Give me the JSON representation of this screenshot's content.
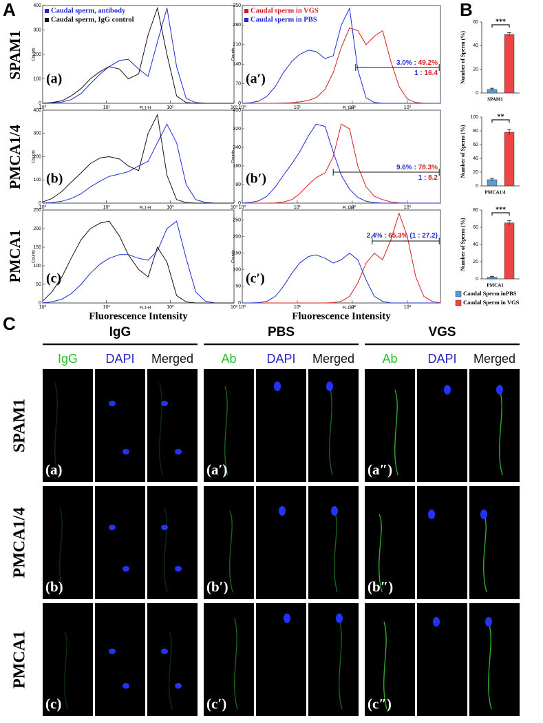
{
  "figure": {
    "A": "A",
    "B": "B",
    "flow_rows": [
      "SPAM1",
      "PMCA1/4",
      "PMCA1"
    ]
  },
  "chart_data": [
    {
      "type": "line",
      "panel_label": "(a)",
      "ylabel": "Counts",
      "xlabel": "FL1-H",
      "log_x": true,
      "legend": "top-left",
      "x": [
        1,
        1.4,
        2,
        2.8,
        4,
        5.6,
        8,
        11,
        16,
        22,
        32,
        45,
        63,
        89,
        126,
        178,
        251,
        355,
        501,
        708,
        1000
      ],
      "xlim": [
        1,
        1000
      ],
      "xticks": [
        {
          "value": 1,
          "label": "10⁰"
        },
        {
          "value": 10,
          "label": "10¹"
        },
        {
          "value": 100,
          "label": "10²"
        },
        {
          "value": 1000,
          "label": "10³"
        }
      ],
      "ylim": [
        0,
        400
      ],
      "yticks": [
        0,
        100,
        200,
        300,
        400
      ],
      "series": [
        {
          "name": "Caudal sperm, antibody",
          "color": "#1a2bd6",
          "values": [
            0,
            2,
            5,
            15,
            40,
            80,
            120,
            150,
            175,
            180,
            140,
            110,
            250,
            390,
            150,
            20,
            3,
            0,
            0,
            0,
            0
          ]
        },
        {
          "name": "Caudal sperm, IgG control",
          "color": "#111111",
          "values": [
            0,
            3,
            10,
            30,
            60,
            100,
            130,
            150,
            140,
            100,
            120,
            280,
            390,
            200,
            30,
            3,
            0,
            0,
            0,
            0,
            0
          ]
        }
      ]
    },
    {
      "type": "line",
      "panel_label": "(a′)",
      "ylabel": "Counts",
      "xlabel": "FL1-H",
      "log_x": true,
      "legend": "top-left",
      "x": [
        1,
        1.4,
        2,
        2.8,
        4,
        5.6,
        8,
        11,
        16,
        22,
        32,
        45,
        63,
        89,
        126,
        178,
        251,
        355,
        501,
        708,
        1000,
        1413,
        1995,
        2818,
        3981
      ],
      "xlim": [
        1,
        4000
      ],
      "xticks": [
        {
          "value": 1,
          "label": "10⁰"
        },
        {
          "value": 10,
          "label": "10¹"
        },
        {
          "value": 100,
          "label": "10²"
        },
        {
          "value": 1000,
          "label": "10³"
        }
      ],
      "ylim": [
        0,
        350
      ],
      "yticks": [
        0,
        70,
        140,
        210,
        280,
        350
      ],
      "series": [
        {
          "name": "Caudal sperm in VGS",
          "color": "#d41c1c",
          "values": [
            0,
            0,
            0,
            0,
            0,
            1,
            2,
            5,
            10,
            20,
            50,
            110,
            200,
            270,
            260,
            210,
            240,
            260,
            150,
            60,
            15,
            3,
            0,
            0,
            0
          ]
        },
        {
          "name": "Caudal sperm in PBS",
          "color": "#1a2bd6",
          "values": [
            0,
            2,
            8,
            25,
            60,
            110,
            150,
            175,
            190,
            185,
            160,
            170,
            280,
            340,
            120,
            20,
            3,
            0,
            0,
            0,
            0,
            0,
            0,
            0,
            0
          ]
        }
      ],
      "gate": [
        115,
        3800
      ],
      "annotations": [
        [
          {
            "text": "3.0%",
            "color": "#1a2bd6"
          },
          {
            "text": " : ",
            "color": "#1a2bd6"
          },
          {
            "text": "49.2%",
            "color": "#d41c1c"
          }
        ],
        [
          {
            "text": "1",
            "color": "#1a2bd6"
          },
          {
            "text": " : ",
            "color": "#1a2bd6"
          },
          {
            "text": "16.4",
            "color": "#d41c1c"
          }
        ]
      ]
    },
    {
      "type": "line",
      "panel_label": "(b)",
      "ylabel": "Counts",
      "xlabel": "FL1-H",
      "log_x": true,
      "x": [
        1,
        1.4,
        2,
        2.8,
        4,
        5.6,
        8,
        11,
        16,
        22,
        32,
        45,
        63,
        89,
        126,
        178,
        251,
        355,
        501,
        708,
        1000
      ],
      "xlim": [
        1,
        1000
      ],
      "xticks": [
        {
          "value": 1,
          "label": "10⁰"
        },
        {
          "value": 10,
          "label": "10¹"
        },
        {
          "value": 100,
          "label": "10²"
        },
        {
          "value": 1000,
          "label": "10³"
        }
      ],
      "ylim": [
        0,
        400
      ],
      "yticks": [
        0,
        100,
        200,
        300,
        400
      ],
      "series": [
        {
          "color": "#1a2bd6",
          "values": [
            0,
            2,
            8,
            20,
            40,
            70,
            95,
            115,
            125,
            135,
            160,
            180,
            260,
            340,
            260,
            80,
            15,
            3,
            0,
            0,
            0
          ]
        },
        {
          "color": "#111111",
          "values": [
            5,
            20,
            50,
            90,
            130,
            170,
            195,
            200,
            190,
            160,
            140,
            300,
            380,
            120,
            15,
            2,
            0,
            0,
            0,
            0,
            0
          ]
        }
      ]
    },
    {
      "type": "line",
      "panel_label": "(b′)",
      "ylabel": "Counts",
      "xlabel": "FL1-H",
      "log_x": true,
      "x": [
        1,
        1.4,
        2,
        2.8,
        4,
        5.6,
        8,
        11,
        16,
        22,
        32,
        45,
        63,
        89,
        126,
        178,
        251,
        355,
        501,
        708,
        1000,
        1413,
        1995,
        2818,
        3981
      ],
      "xlim": [
        1,
        4000
      ],
      "xticks": [
        {
          "value": 1,
          "label": "10⁰"
        },
        {
          "value": 10,
          "label": "10¹"
        },
        {
          "value": 100,
          "label": "10²"
        },
        {
          "value": 1000,
          "label": "10³"
        }
      ],
      "ylim": [
        0,
        400
      ],
      "yticks": [
        0,
        80,
        160,
        240,
        320,
        400
      ],
      "series": [
        {
          "color": "#d41c1c",
          "values": [
            0,
            0,
            0,
            0,
            1,
            5,
            15,
            40,
            80,
            110,
            130,
            200,
            340,
            320,
            160,
            70,
            30,
            15,
            5,
            1,
            0,
            0,
            0,
            0,
            0
          ]
        },
        {
          "color": "#1a2bd6",
          "values": [
            0,
            3,
            10,
            30,
            70,
            120,
            170,
            220,
            290,
            340,
            330,
            220,
            120,
            60,
            25,
            8,
            2,
            0,
            0,
            0,
            0,
            0,
            0,
            0,
            0
          ]
        }
      ],
      "gate": [
        45,
        3800
      ],
      "annotations": [
        [
          {
            "text": "9.6%",
            "color": "#1a2bd6"
          },
          {
            "text": " : ",
            "color": "#1a2bd6"
          },
          {
            "text": "78.3%",
            "color": "#d41c1c"
          }
        ],
        [
          {
            "text": "1",
            "color": "#1a2bd6"
          },
          {
            "text": " : ",
            "color": "#1a2bd6"
          },
          {
            "text": "8.2",
            "color": "#d41c1c"
          }
        ]
      ]
    },
    {
      "type": "line",
      "panel_label": "(c)",
      "ylabel": "Counts",
      "xlabel": "FL1-H",
      "x_title": "Fluorescence Intensity",
      "log_x": true,
      "x": [
        1,
        1.4,
        2,
        2.8,
        4,
        5.6,
        8,
        11,
        16,
        22,
        32,
        45,
        63,
        89,
        126,
        178,
        251,
        355,
        501,
        708,
        1000
      ],
      "xlim": [
        1,
        1000
      ],
      "xticks": [
        {
          "value": 1,
          "label": "10⁰"
        },
        {
          "value": 10,
          "label": "10¹"
        },
        {
          "value": 100,
          "label": "10²"
        },
        {
          "value": 1000,
          "label": "10³"
        }
      ],
      "ylim": [
        0,
        250
      ],
      "yticks": [
        0,
        50,
        100,
        150,
        200,
        250
      ],
      "series": [
        {
          "color": "#1a2bd6",
          "values": [
            0,
            3,
            10,
            25,
            50,
            80,
            105,
            120,
            130,
            130,
            120,
            115,
            140,
            200,
            220,
            120,
            30,
            5,
            0,
            0,
            0
          ]
        },
        {
          "color": "#111111",
          "values": [
            5,
            30,
            70,
            120,
            170,
            200,
            215,
            220,
            180,
            130,
            90,
            70,
            150,
            110,
            20,
            3,
            0,
            0,
            0,
            0,
            0
          ]
        }
      ]
    },
    {
      "type": "line",
      "panel_label": "(c′)",
      "ylabel": "Counts",
      "xlabel": "FL1-H",
      "x_title": "Fluorescence Intensity",
      "log_x": true,
      "x": [
        1,
        1.4,
        2,
        2.8,
        4,
        5.6,
        8,
        11,
        16,
        22,
        32,
        45,
        63,
        89,
        126,
        178,
        251,
        355,
        501,
        708,
        1000,
        1413,
        1995,
        2818,
        3981
      ],
      "xlim": [
        1,
        4000
      ],
      "xticks": [
        {
          "value": 1,
          "label": "10⁰"
        },
        {
          "value": 10,
          "label": "10¹"
        },
        {
          "value": 100,
          "label": "10²"
        },
        {
          "value": 1000,
          "label": "10³"
        }
      ],
      "ylim": [
        0,
        280
      ],
      "yticks": [
        0,
        50,
        100,
        150,
        200,
        250
      ],
      "series": [
        {
          "color": "#d41c1c",
          "values": [
            0,
            0,
            0,
            0,
            0,
            0,
            0,
            0,
            0,
            0,
            0,
            1,
            5,
            20,
            60,
            120,
            150,
            130,
            190,
            270,
            200,
            80,
            20,
            5,
            0
          ]
        },
        {
          "color": "#1a2bd6",
          "values": [
            0,
            0,
            1,
            5,
            20,
            50,
            90,
            120,
            140,
            145,
            135,
            120,
            130,
            150,
            130,
            70,
            20,
            5,
            0,
            0,
            0,
            0,
            0,
            0,
            0
          ]
        }
      ],
      "gate": [
        230,
        3800
      ],
      "annotations": [
        [
          {
            "text": "2.4%",
            "color": "#1a2bd6"
          },
          {
            "text": " : ",
            "color": "#1a2bd6"
          },
          {
            "text": "65.3%",
            "color": "#d41c1c"
          },
          {
            "text": " (1 : 27.2)",
            "color": "#1a2bd6"
          }
        ]
      ]
    },
    {
      "type": "bar",
      "xlabel": "SPAM1",
      "ylabel": "Number of Sperm (%)",
      "ylim": [
        0,
        60
      ],
      "yticks": [
        0,
        20,
        40,
        60
      ],
      "significance": "***",
      "series": [
        {
          "color": "#5b9bd5",
          "values": [
            3
          ],
          "errors": [
            1
          ]
        },
        {
          "color": "#ee4444",
          "values": [
            49.5
          ],
          "errors": [
            1.5
          ]
        }
      ]
    },
    {
      "type": "bar",
      "xlabel": "PMCA1/4",
      "ylabel": "Number of Sperm (%)",
      "ylim": [
        0,
        100
      ],
      "yticks": [
        0,
        20,
        40,
        60,
        80,
        100
      ],
      "significance": "**",
      "series": [
        {
          "color": "#5b9bd5",
          "values": [
            9
          ],
          "errors": [
            2
          ]
        },
        {
          "color": "#ee4444",
          "values": [
            78
          ],
          "errors": [
            4
          ]
        }
      ]
    },
    {
      "type": "bar",
      "xlabel": "PMCA1",
      "ylabel": "Number of Sperm (%)",
      "ylim": [
        0,
        80
      ],
      "yticks": [
        0,
        20,
        40,
        60,
        80
      ],
      "significance": "***",
      "legend": "below",
      "series": [
        {
          "name": "Caudal Sperm inPBS",
          "color": "#5b9bd5",
          "values": [
            2
          ],
          "errors": [
            0.8
          ]
        },
        {
          "name": "Caudal Sperm in VGS",
          "color": "#ee4444",
          "values": [
            65
          ],
          "errors": [
            2.5
          ]
        }
      ]
    }
  ],
  "micrographs": {
    "label": "C",
    "groups": [
      {
        "title": "IgG",
        "columns": [
          "IgG",
          "DAPI",
          "Merged"
        ]
      },
      {
        "title": "PBS",
        "columns": [
          "Ab",
          "DAPI",
          "Merged"
        ]
      },
      {
        "title": "VGS",
        "columns": [
          "Ab",
          "DAPI",
          "Merged"
        ]
      }
    ],
    "rows": [
      {
        "label": "SPAM1",
        "panels": [
          "(a)",
          "(a′)",
          "(a″)"
        ]
      },
      {
        "label": "PMCA1/4",
        "panels": [
          "(b)",
          "(b′)",
          "(b″)"
        ]
      },
      {
        "label": "PMCA1",
        "panels": [
          "(c)",
          "(c′)",
          "(c″)"
        ]
      }
    ]
  }
}
